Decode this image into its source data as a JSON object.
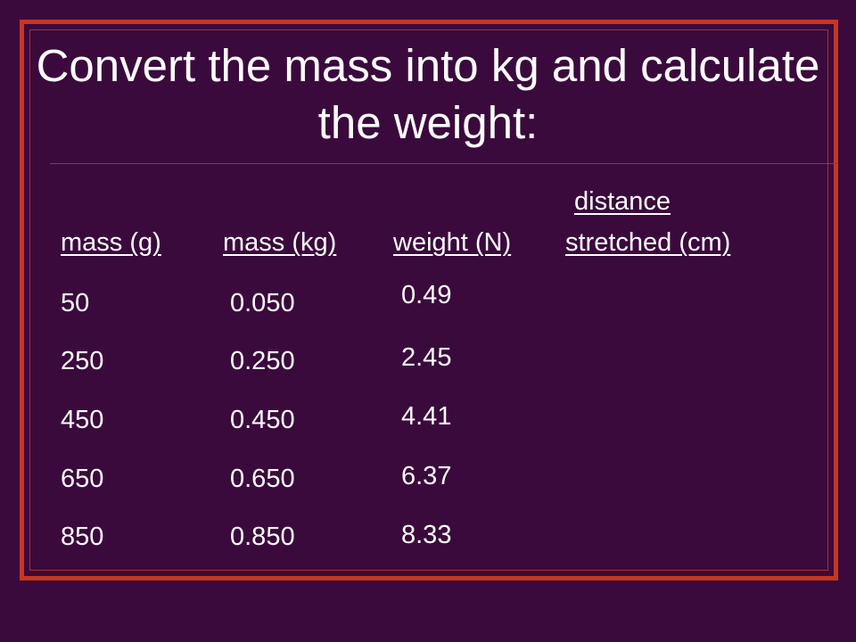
{
  "title": "Convert the mass into kg and calculate the weight:",
  "table": {
    "headers": {
      "mass_g": "mass (g)",
      "mass_kg": "mass (kg)",
      "weight_n": "weight (N)",
      "distance_line1": "distance",
      "distance_line2": "stretched (cm)"
    },
    "mass_g": [
      "50",
      "250",
      "450",
      "650",
      "850"
    ],
    "mass_kg": [
      "0.050",
      "0.250",
      "0.450",
      "0.650",
      "0.850"
    ],
    "weight_n": [
      "0.49",
      "2.45",
      "4.41",
      "6.37",
      "8.33"
    ]
  },
  "colors": {
    "background": "#3b0a3d",
    "frame": "#c8361f",
    "text": "#ffffff"
  }
}
